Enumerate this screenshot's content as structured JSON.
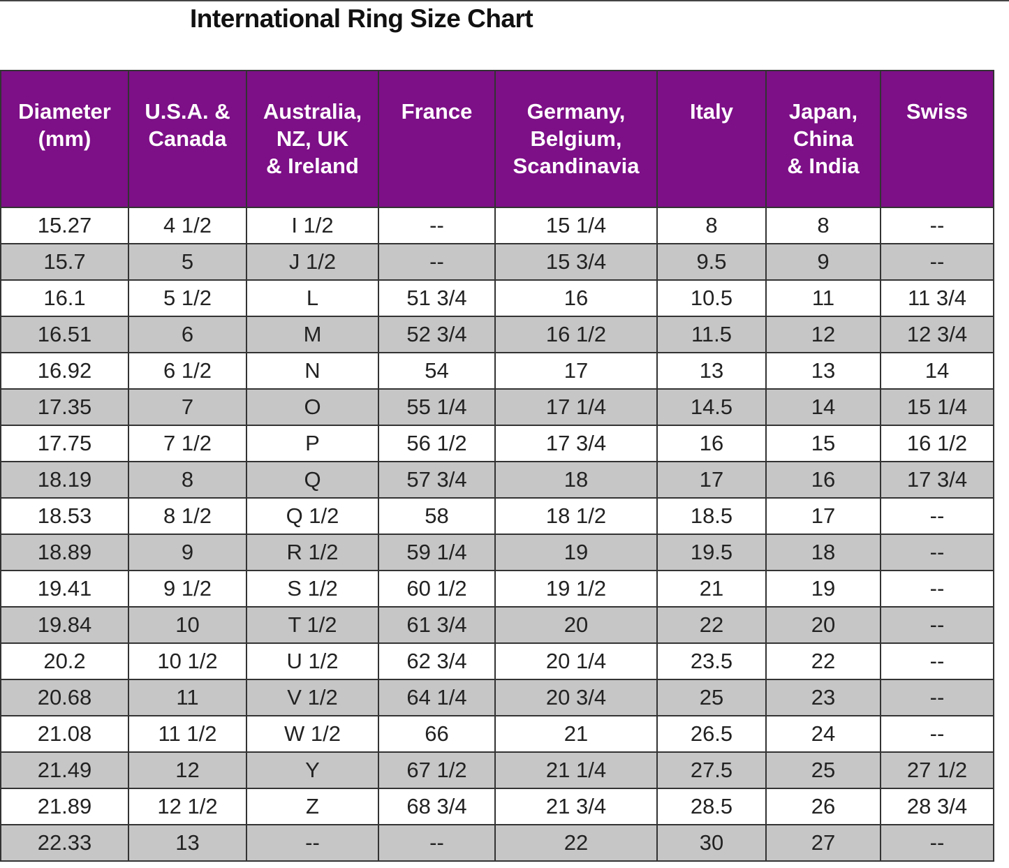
{
  "title": "International Ring Size Chart",
  "table": {
    "header": [
      "Diameter\n(mm)",
      "U.S.A. &\nCanada",
      "Australia,\nNZ, UK\n& Ireland",
      "France",
      "Germany,\nBelgium,\nScandinavia",
      "Italy",
      "Japan,\nChina\n& India",
      "Swiss"
    ],
    "rows": [
      [
        "15.27",
        "4 1/2",
        "I 1/2",
        "--",
        "15 1/4",
        "8",
        "8",
        "--"
      ],
      [
        "15.7",
        "5",
        "J 1/2",
        "--",
        "15 3/4",
        "9.5",
        "9",
        "--"
      ],
      [
        "16.1",
        "5 1/2",
        "L",
        "51 3/4",
        "16",
        "10.5",
        "11",
        "11 3/4"
      ],
      [
        "16.51",
        "6",
        "M",
        "52 3/4",
        "16 1/2",
        "11.5",
        "12",
        "12 3/4"
      ],
      [
        "16.92",
        "6 1/2",
        "N",
        "54",
        "17",
        "13",
        "13",
        "14"
      ],
      [
        "17.35",
        "7",
        "O",
        "55 1/4",
        "17 1/4",
        "14.5",
        "14",
        "15 1/4"
      ],
      [
        "17.75",
        "7 1/2",
        "P",
        "56 1/2",
        "17 3/4",
        "16",
        "15",
        "16 1/2"
      ],
      [
        "18.19",
        "8",
        "Q",
        "57 3/4",
        "18",
        "17",
        "16",
        "17 3/4"
      ],
      [
        "18.53",
        "8 1/2",
        "Q 1/2",
        "58",
        "18 1/2",
        "18.5",
        "17",
        "--"
      ],
      [
        "18.89",
        "9",
        "R 1/2",
        "59 1/4",
        "19",
        "19.5",
        "18",
        "--"
      ],
      [
        "19.41",
        "9 1/2",
        "S 1/2",
        "60 1/2",
        "19 1/2",
        "21",
        "19",
        "--"
      ],
      [
        "19.84",
        "10",
        "T 1/2",
        "61 3/4",
        "20",
        "22",
        "20",
        "--"
      ],
      [
        "20.2",
        "10 1/2",
        "U 1/2",
        "62 3/4",
        "20 1/4",
        "23.5",
        "22",
        "--"
      ],
      [
        "20.68",
        "11",
        "V 1/2",
        "64 1/4",
        "20 3/4",
        "25",
        "23",
        "--"
      ],
      [
        "21.08",
        "11 1/2",
        "W 1/2",
        "66",
        "21",
        "26.5",
        "24",
        "--"
      ],
      [
        "21.49",
        "12",
        "Y",
        "67 1/2",
        "21 1/4",
        "27.5",
        "25",
        "27 1/2"
      ],
      [
        "21.89",
        "12 1/2",
        "Z",
        "68 3/4",
        "21 3/4",
        "28.5",
        "26",
        "28 3/4"
      ],
      [
        "22.33",
        "13",
        "--",
        "--",
        "22",
        "30",
        "27",
        "--"
      ]
    ]
  }
}
